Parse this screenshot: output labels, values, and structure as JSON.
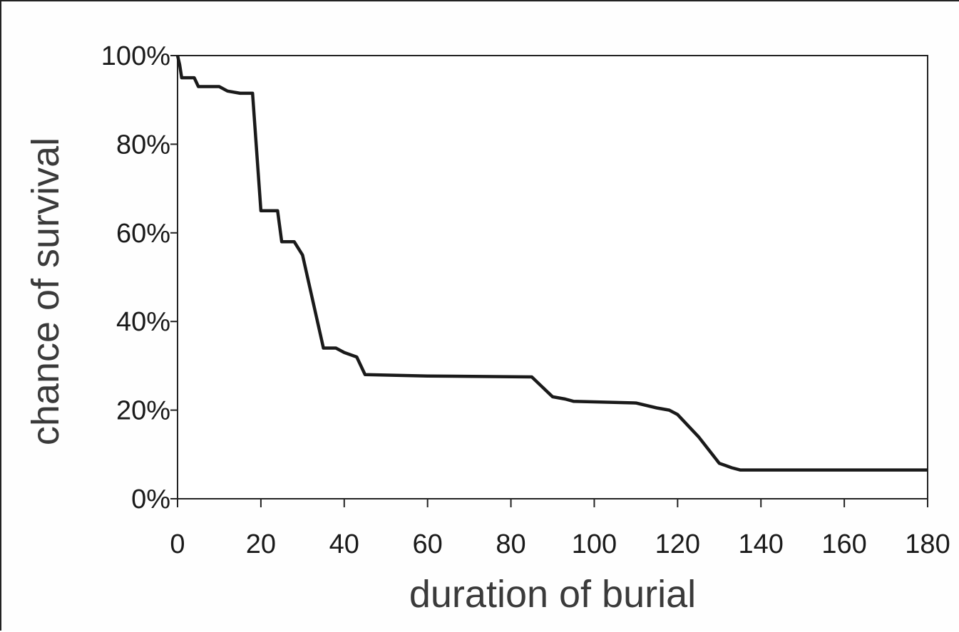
{
  "chart_data": {
    "type": "line",
    "title": "",
    "xlabel": "duration of burial",
    "ylabel": "chance of survival",
    "xlim": [
      0,
      180
    ],
    "ylim": [
      0,
      100
    ],
    "xticks": [
      0,
      20,
      40,
      60,
      80,
      100,
      120,
      140,
      160,
      180
    ],
    "xtick_labels": [
      "0",
      "20",
      "40",
      "60",
      "80",
      "100",
      "120",
      "140",
      "160",
      "180"
    ],
    "yticks": [
      0,
      20,
      40,
      60,
      80,
      100
    ],
    "ytick_labels": [
      "0%",
      "20%",
      "40%",
      "60%",
      "80%",
      "100%"
    ],
    "grid": false,
    "legend": "none",
    "line_color": "#1a1a1a",
    "series": [
      {
        "x": [
          0,
          0.5,
          1,
          4,
          5,
          10,
          12,
          15,
          18,
          20,
          24,
          25,
          28,
          30,
          35,
          38,
          40,
          43,
          45,
          60,
          85,
          90,
          93,
          95,
          110,
          115,
          118,
          120,
          125,
          130,
          133,
          135,
          140,
          180
        ],
        "y": [
          100,
          98,
          95,
          95,
          93,
          93,
          92,
          91.5,
          91.5,
          65,
          65,
          58,
          58,
          55,
          34,
          34,
          33,
          32,
          28,
          27.7,
          27.5,
          23,
          22.5,
          22,
          21.6,
          20.5,
          20,
          19,
          14,
          8,
          7,
          6.5,
          6.5,
          6.5
        ]
      }
    ]
  }
}
